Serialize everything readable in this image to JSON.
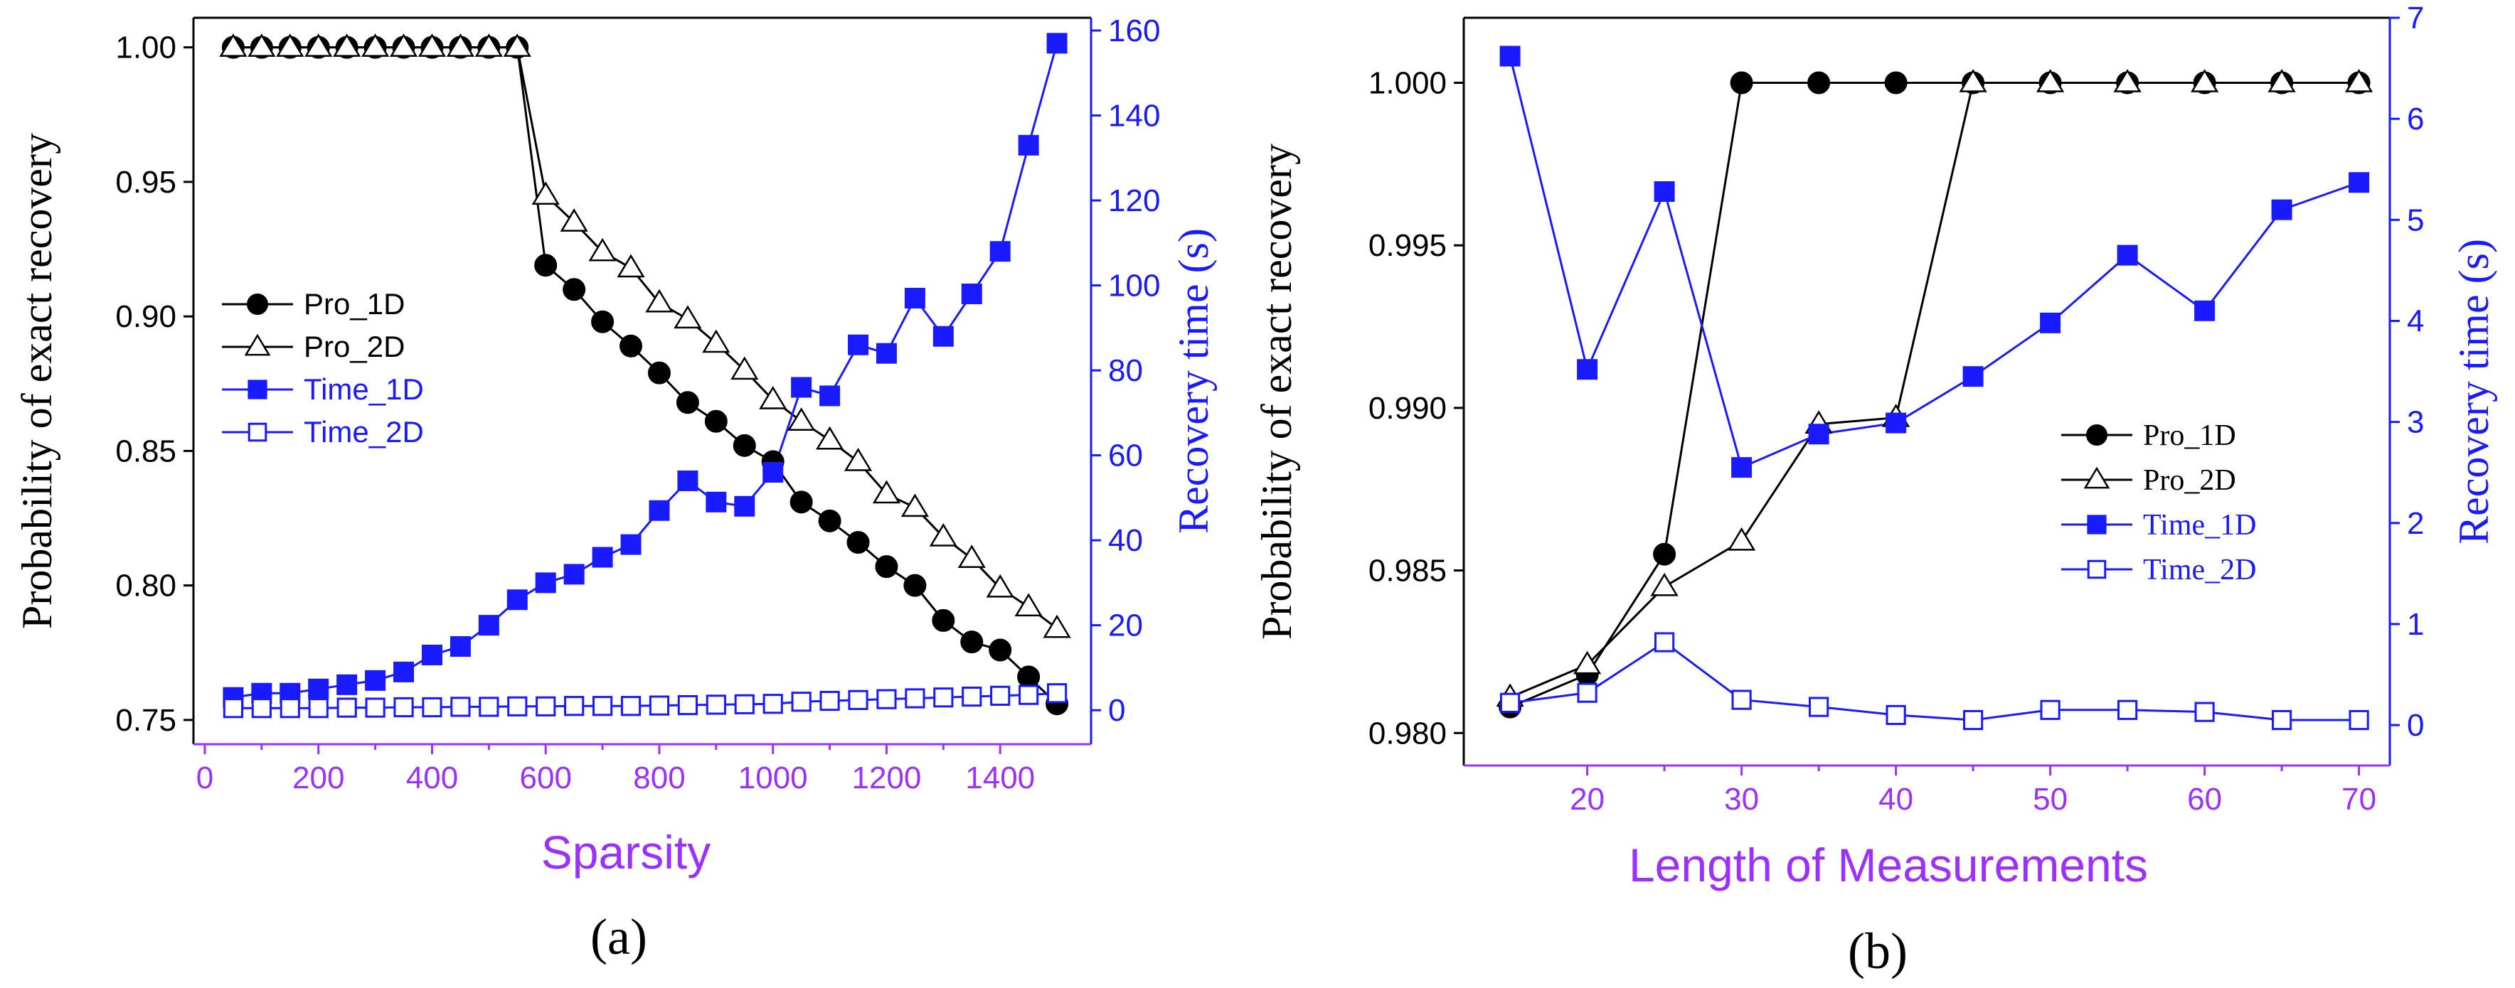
{
  "colors": {
    "black": "#000000",
    "blue": "#1a1aff",
    "purple": "#9b30ff"
  },
  "chart_data": [
    {
      "type": "line",
      "caption": "(a)",
      "xlabel": "Sparsity",
      "ylabel_left": "Probability of exact recovery",
      "ylabel_right": "Recovery time (s)",
      "xlim": [
        -20,
        1560
      ],
      "ylim_left": [
        0.741,
        1.011
      ],
      "ylim_right": [
        -8,
        163
      ],
      "xticks": [
        0,
        200,
        400,
        600,
        800,
        1000,
        1200,
        1400
      ],
      "yticks_left": [
        "0.75",
        "0.80",
        "0.85",
        "0.90",
        "0.95",
        "1.00"
      ],
      "yticks_right": [
        0,
        20,
        40,
        60,
        80,
        100,
        120,
        140,
        160
      ],
      "legend": [
        "Pro_1D",
        "Pro_2D",
        "Time_1D",
        "Time_2D"
      ],
      "x": [
        50,
        100,
        150,
        200,
        250,
        300,
        350,
        400,
        450,
        500,
        550,
        600,
        650,
        700,
        750,
        800,
        850,
        900,
        950,
        1000,
        1050,
        1100,
        1150,
        1200,
        1250,
        1300,
        1350,
        1400,
        1450,
        1500
      ],
      "series": [
        {
          "name": "Pro_1D",
          "axis": "left",
          "marker": "filled-circle",
          "color": "#000000",
          "values": [
            1,
            1,
            1,
            1,
            1,
            1,
            1,
            1,
            1,
            1,
            1,
            0.919,
            0.91,
            0.898,
            0.889,
            0.879,
            0.868,
            0.861,
            0.852,
            0.846,
            0.831,
            0.824,
            0.816,
            0.807,
            0.8,
            0.787,
            0.779,
            0.776,
            0.766,
            0.756
          ]
        },
        {
          "name": "Pro_2D",
          "axis": "left",
          "marker": "open-triangle",
          "color": "#000000",
          "values": [
            1,
            1,
            1,
            1,
            1,
            1,
            1,
            1,
            1,
            1,
            1,
            0.945,
            0.935,
            0.924,
            0.918,
            0.905,
            0.899,
            0.89,
            0.88,
            0.869,
            0.861,
            0.854,
            0.846,
            0.834,
            0.829,
            0.818,
            0.81,
            0.799,
            0.792,
            0.784
          ]
        },
        {
          "name": "Time_1D",
          "axis": "right",
          "marker": "filled-square",
          "color": "#1a1aff",
          "values": [
            3,
            4,
            4,
            5,
            6,
            7,
            9,
            13,
            15,
            20,
            26,
            30,
            32,
            36,
            39,
            47,
            54,
            49,
            48,
            56,
            76,
            74,
            86,
            84,
            97,
            88,
            98,
            108,
            133,
            157
          ]
        },
        {
          "name": "Time_2D",
          "axis": "right",
          "marker": "open-square",
          "color": "#1a1aff",
          "values": [
            0.5,
            0.5,
            0.5,
            0.5,
            0.6,
            0.6,
            0.7,
            0.7,
            0.8,
            0.8,
            0.9,
            0.9,
            1,
            1,
            1,
            1.1,
            1.2,
            1.3,
            1.4,
            1.5,
            2,
            2.2,
            2.4,
            2.6,
            2.8,
            3,
            3.2,
            3.4,
            3.6,
            4
          ]
        }
      ]
    },
    {
      "type": "line",
      "caption": "(b)",
      "xlabel": "Length of Measurements",
      "ylabel_left": "Probability of exact recovery",
      "ylabel_right": "Recovery time (s)",
      "xlim": [
        12,
        72
      ],
      "ylim_left": [
        0.979,
        1.002
      ],
      "ylim_right": [
        -0.4,
        7.0
      ],
      "xticks": [
        20,
        30,
        40,
        50,
        60,
        70
      ],
      "yticks_left": [
        "0.980",
        "0.985",
        "0.990",
        "0.995",
        "1.000"
      ],
      "yticks_right": [
        0,
        1,
        2,
        3,
        4,
        5,
        6,
        7
      ],
      "legend": [
        "Pro_1D",
        "Pro_2D",
        "Time_1D",
        "Time_2D"
      ],
      "x": [
        15,
        20,
        25,
        30,
        35,
        40,
        45,
        50,
        55,
        60,
        65,
        70
      ],
      "series": [
        {
          "name": "Pro_1D",
          "axis": "left",
          "marker": "filled-circle",
          "color": "#000000",
          "values": [
            0.9808,
            0.9818,
            0.9855,
            1,
            1,
            1,
            1,
            1,
            1,
            1,
            1,
            1
          ]
        },
        {
          "name": "Pro_2D",
          "axis": "left",
          "marker": "open-triangle",
          "color": "#000000",
          "values": [
            0.9811,
            0.9821,
            0.9845,
            0.9859,
            0.9895,
            0.9897,
            1,
            1,
            1,
            1,
            1,
            1
          ]
        },
        {
          "name": "Time_1D",
          "axis": "right",
          "marker": "filled-square",
          "color": "#1a1aff",
          "values": [
            6.62,
            3.52,
            5.28,
            2.55,
            2.88,
            2.99,
            3.45,
            3.98,
            4.65,
            4.1,
            5.1,
            5.37
          ]
        },
        {
          "name": "Time_2D",
          "axis": "right",
          "marker": "open-square",
          "color": "#1a1aff",
          "values": [
            0.22,
            0.32,
            0.82,
            0.25,
            0.18,
            0.1,
            0.05,
            0.15,
            0.15,
            0.13,
            0.05,
            0.05
          ]
        }
      ]
    }
  ]
}
